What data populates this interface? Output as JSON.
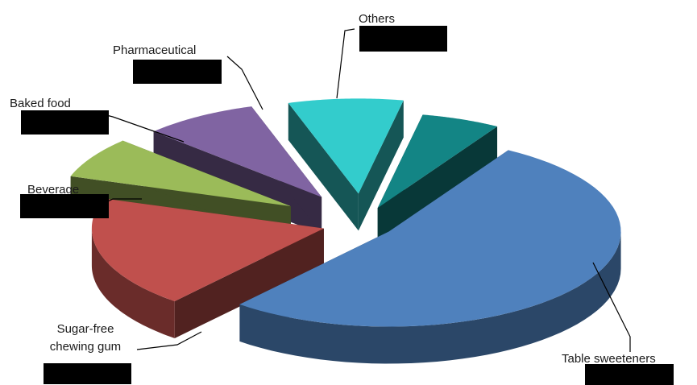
{
  "chart_data": {
    "type": "pie",
    "title": "",
    "style": "3d-exploded",
    "show_values": false,
    "slices": [
      {
        "label": "Table sweeteners",
        "value": 52.5,
        "color": "#4F81BD"
      },
      {
        "label": "Sugar-free chewing gum",
        "value": 19,
        "color": "#C0504D"
      },
      {
        "label": "Beverage",
        "value": 7,
        "color": "#9BBB59"
      },
      {
        "label": "Baked food",
        "value": 8,
        "color": "#8064A2"
      },
      {
        "label": "Pharmaceutical",
        "value": 8,
        "color": "#33CCCC"
      },
      {
        "label": "Others",
        "value": 5.5,
        "color": "#138585"
      }
    ],
    "label_lines": {
      "Sugar-free chewing gum": [
        "Sugar-free",
        "chewing gum"
      ]
    }
  }
}
